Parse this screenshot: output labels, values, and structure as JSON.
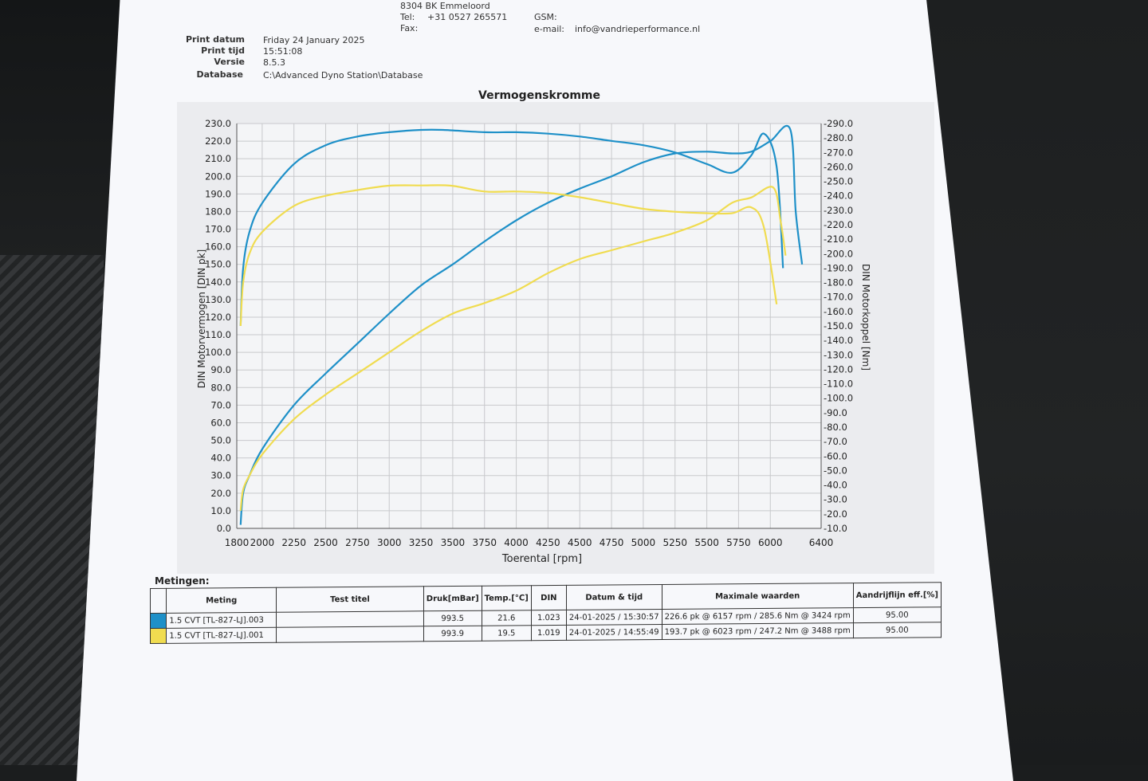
{
  "header": {
    "address": "8304 BK Emmeloord",
    "tel_label": "Tel:",
    "tel_value": "+31 0527 265571",
    "fax_label": "Fax:",
    "gsm_label": "GSM:",
    "email_label": "e-mail:",
    "email_value": "info@vandrieperformance.nl",
    "print_datum_label": "Print datum",
    "print_datum_value": "Friday 24 January 2025",
    "print_tijd_label": "Print tijd",
    "print_tijd_value": "15:51:08",
    "versie_label": "Versie",
    "versie_value": "8.5.3",
    "database_label": "Database",
    "database_value": "C:\\Advanced Dyno Station\\Database"
  },
  "chart_data": {
    "type": "line",
    "title": "Vermogenskromme",
    "xlabel": "Toerental [rpm]",
    "ylabel_left": "DIN Motorvermogen [DIN pk]",
    "ylabel_right": "DIN Motorkoppel [Nm]",
    "xlim": [
      1800,
      6400
    ],
    "ylim_left": [
      0,
      230
    ],
    "ylim_right": [
      10,
      290
    ],
    "x_ticks": [
      1800,
      2000,
      2250,
      2500,
      2750,
      3000,
      3250,
      3500,
      3750,
      4000,
      4250,
      4500,
      4750,
      5000,
      5250,
      5500,
      5750,
      6000,
      6400
    ],
    "y_left_ticks": [
      "0.0",
      "10.0",
      "20.0",
      "30.0",
      "40.0",
      "50.0",
      "60.0",
      "70.0",
      "80.0",
      "90.0",
      "100.0",
      "110.0",
      "120.0",
      "130.0",
      "140.0",
      "150.0",
      "160.0",
      "170.0",
      "180.0",
      "190.0",
      "200.0",
      "210.0",
      "220.0",
      "230.0"
    ],
    "y_right_ticks": [
      "10.0",
      "20.0",
      "30.0",
      "40.0",
      "50.0",
      "60.0",
      "70.0",
      "80.0",
      "90.0",
      "100.0",
      "110.0",
      "120.0",
      "130.0",
      "140.0",
      "150.0",
      "160.0",
      "170.0",
      "180.0",
      "190.0",
      "200.0",
      "210.0",
      "220.0",
      "230.0",
      "240.0",
      "250.0",
      "260.0",
      "270.0",
      "280.0",
      "290.0"
    ],
    "grid": true,
    "series": [
      {
        "name": "1.5 CVT [TL-827-LJ].003",
        "color": "#1e90c8",
        "power": {
          "x": [
            1830,
            1850,
            1900,
            2000,
            2250,
            2500,
            2750,
            3000,
            3250,
            3500,
            3750,
            4000,
            4250,
            4500,
            4750,
            5000,
            5250,
            5500,
            5700,
            5850,
            6000,
            6157,
            6200,
            6250
          ],
          "y": [
            2,
            20,
            30,
            45,
            70,
            88,
            105,
            122,
            138,
            150,
            163,
            175,
            185,
            193,
            200,
            208,
            213,
            214,
            213,
            214,
            220,
            226.6,
            180,
            150
          ]
        },
        "torque": {
          "x": [
            1830,
            1850,
            1900,
            2000,
            2250,
            2500,
            2750,
            3000,
            3250,
            3424,
            3750,
            4000,
            4250,
            4500,
            4750,
            5000,
            5250,
            5500,
            5700,
            5850,
            5950,
            6050,
            6100
          ],
          "y": [
            150,
            190,
            215,
            235,
            262,
            275,
            281,
            284,
            285.6,
            285.6,
            284,
            284,
            283,
            281,
            278,
            275,
            270,
            262,
            256,
            268,
            283,
            260,
            190
          ]
        }
      },
      {
        "name": "1.5 CVT [TL-827-LJ].001",
        "color": "#f0dc50",
        "power": {
          "x": [
            1830,
            1850,
            1900,
            2000,
            2250,
            2500,
            2750,
            3000,
            3250,
            3500,
            3750,
            4000,
            4250,
            4500,
            4750,
            5000,
            5250,
            5500,
            5700,
            5850,
            6023,
            6080,
            6120
          ],
          "y": [
            10,
            22,
            30,
            42,
            62,
            76,
            88,
            100,
            112,
            122,
            128,
            135,
            145,
            153,
            158,
            163,
            168,
            175,
            185,
            188,
            193.7,
            175,
            155
          ]
        },
        "torque": {
          "x": [
            1830,
            1850,
            1900,
            2000,
            2250,
            2500,
            2750,
            3000,
            3250,
            3488,
            3750,
            4000,
            4250,
            4500,
            4750,
            5000,
            5250,
            5500,
            5700,
            5850,
            5950,
            6050
          ],
          "y": [
            150,
            180,
            200,
            215,
            233,
            240,
            244,
            247,
            247.2,
            247,
            243,
            243,
            242,
            239,
            235,
            231,
            229,
            228,
            228,
            232,
            218,
            165
          ]
        }
      }
    ]
  },
  "table": {
    "title": "Metingen:",
    "headers": [
      "Meting",
      "Test titel",
      "Druk[mBar]",
      "Temp.[°C]",
      "DIN",
      "Datum & tijd",
      "Maximale waarden",
      "Aandrijflijn eff.[%]"
    ],
    "rows": [
      {
        "color": "#1e90c8",
        "meting": "1.5 CVT [TL-827-LJ].003",
        "test_titel": "",
        "druk": "993.5",
        "temp": "21.6",
        "din": "1.023",
        "datum": "24-01-2025 / 15:30:57",
        "max": "226.6 pk @ 6157 rpm / 285.6 Nm @ 3424 rpm",
        "eff": "95.00"
      },
      {
        "color": "#f0dc50",
        "meting": "1.5 CVT [TL-827-LJ].001",
        "test_titel": "",
        "druk": "993.9",
        "temp": "19.5",
        "din": "1.019",
        "datum": "24-01-2025 / 14:55:49",
        "max": "193.7 pk @ 6023 rpm / 247.2 Nm @ 3488 rpm",
        "eff": "95.00"
      }
    ]
  }
}
